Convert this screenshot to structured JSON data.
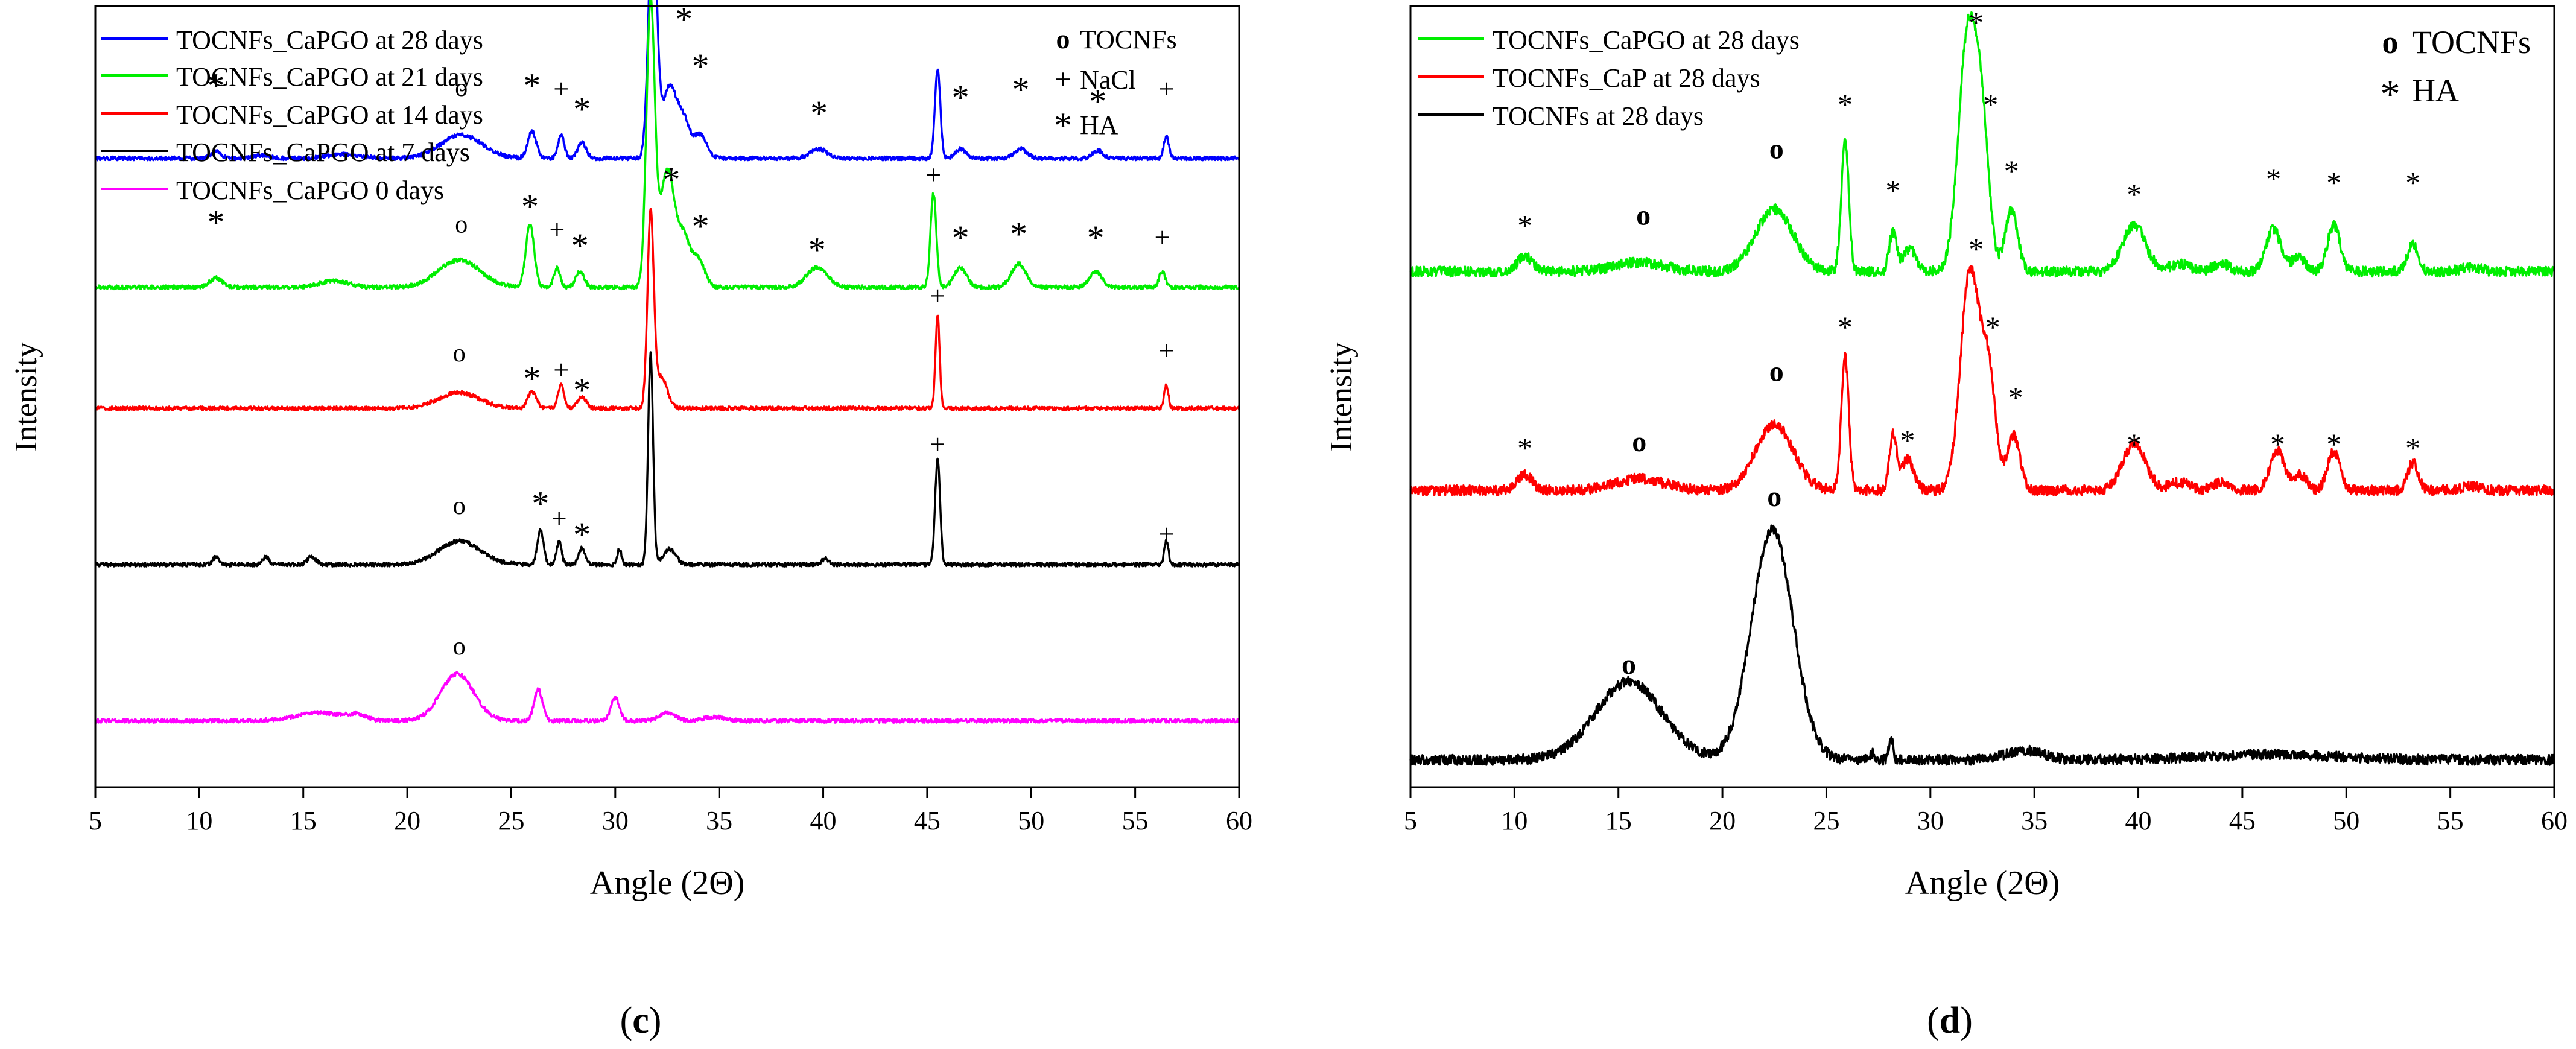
{
  "chart_data": [
    {
      "type": "line",
      "panel_label": "(c)",
      "xlabel": "Angle (2Θ)",
      "ylabel": "Intensity",
      "xlim": [
        5,
        60
      ],
      "xticks": [
        5,
        10,
        15,
        20,
        25,
        30,
        35,
        40,
        45,
        50,
        55,
        60
      ],
      "legend_position": "top-left",
      "legend": [
        {
          "name": "TOCNFs_CaPGO at 28 days",
          "color": "#0000ff"
        },
        {
          "name": "TOCNFs_CaPGO at 21 days",
          "color": "#00ee00"
        },
        {
          "name": "TOCNFs_CaPGO at 14 days",
          "color": "#ff0000"
        },
        {
          "name": "TOCNFs_CaPGO at 7 days",
          "color": "#000000"
        },
        {
          "name": "TOCNFs_CaPGO 0 days",
          "color": "#ff00ff"
        }
      ],
      "key": [
        {
          "symbol": "o",
          "label": "TOCNFs"
        },
        {
          "symbol": "+",
          "label": "NaCl"
        },
        {
          "symbol": "*",
          "label": "HA"
        }
      ],
      "series": [
        {
          "name": "TOCNFs_CaPGO at 28 days",
          "color": "#0000ff",
          "baseline": 0.805,
          "scale": 0.375,
          "peaks": [
            [
              10.8,
              0.009,
              0.25
            ],
            [
              13,
              0.004,
              0.4
            ],
            [
              17,
              0.005,
              0.8
            ],
            [
              22.6,
              0.03,
              1.0
            ],
            [
              26,
              0.035,
              0.2
            ],
            [
              27.4,
              0.03,
              0.15
            ],
            [
              28.4,
              0.02,
              0.2
            ],
            [
              31.8,
              0.31,
              0.2
            ],
            [
              32.6,
              0.09,
              0.35
            ],
            [
              33.3,
              0.045,
              0.3
            ],
            [
              34.1,
              0.03,
              0.3
            ],
            [
              39.8,
              0.012,
              0.4
            ],
            [
              45.5,
              0.115,
              0.13
            ],
            [
              46.6,
              0.012,
              0.25
            ],
            [
              49.5,
              0.012,
              0.3
            ],
            [
              53.2,
              0.01,
              0.25
            ],
            [
              56.5,
              0.028,
              0.12
            ]
          ]
        },
        {
          "name": "TOCNFs_CaPGO at 21 days",
          "color": "#00ee00",
          "baseline": 0.64,
          "scale": 0.31,
          "peaks": [
            [
              10.8,
              0.012,
              0.3
            ],
            [
              16.5,
              0.008,
              0.7
            ],
            [
              22.5,
              0.035,
              1.0
            ],
            [
              25.9,
              0.08,
              0.2
            ],
            [
              27.2,
              0.025,
              0.15
            ],
            [
              28.3,
              0.02,
              0.2
            ],
            [
              31.7,
              0.36,
              0.2
            ],
            [
              32.5,
              0.15,
              0.35
            ],
            [
              33.3,
              0.06,
              0.3
            ],
            [
              34,
              0.035,
              0.3
            ],
            [
              39.7,
              0.025,
              0.5
            ],
            [
              45.3,
              0.12,
              0.14
            ],
            [
              46.6,
              0.025,
              0.3
            ],
            [
              49.4,
              0.03,
              0.35
            ],
            [
              53.1,
              0.02,
              0.3
            ],
            [
              56.3,
              0.02,
              0.15
            ]
          ]
        },
        {
          "name": "TOCNFs_CaPGO at 14 days",
          "color": "#ff0000",
          "baseline": 0.485,
          "scale": 0.32,
          "peaks": [
            [
              22.5,
              0.02,
              1.0
            ],
            [
              26,
              0.022,
              0.2
            ],
            [
              27.4,
              0.03,
              0.15
            ],
            [
              28.4,
              0.015,
              0.2
            ],
            [
              31.7,
              0.245,
              0.15
            ],
            [
              32.2,
              0.04,
              0.3
            ],
            [
              45.5,
              0.12,
              0.1
            ],
            [
              56.5,
              0.03,
              0.1
            ]
          ]
        },
        {
          "name": "TOCNFs_CaPGO at 7 days",
          "color": "#000000",
          "baseline": 0.285,
          "scale": 0.33,
          "peaks": [
            [
              10.8,
              0.01,
              0.15
            ],
            [
              13.2,
              0.01,
              0.15
            ],
            [
              15.4,
              0.01,
              0.2
            ],
            [
              22.5,
              0.03,
              1.0
            ],
            [
              26.4,
              0.045,
              0.15
            ],
            [
              27.3,
              0.03,
              0.12
            ],
            [
              28.4,
              0.022,
              0.15
            ],
            [
              30.2,
              0.02,
              0.1
            ],
            [
              31.7,
              0.27,
              0.12
            ],
            [
              32.6,
              0.02,
              0.3
            ],
            [
              40.1,
              0.008,
              0.15
            ],
            [
              45.5,
              0.135,
              0.12
            ],
            [
              56.5,
              0.03,
              0.1
            ]
          ]
        },
        {
          "name": "TOCNFs_CaPGO 0 days",
          "color": "#ff00ff",
          "baseline": 0.085,
          "scale": 0.3,
          "peaks": [
            [
              15.8,
              0.01,
              1.2
            ],
            [
              17.6,
              0.006,
              0.4
            ],
            [
              22.4,
              0.06,
              0.8
            ],
            [
              26.3,
              0.04,
              0.2
            ],
            [
              30,
              0.03,
              0.2
            ],
            [
              32.5,
              0.01,
              0.4
            ],
            [
              34.8,
              0.005,
              0.5
            ]
          ]
        }
      ],
      "annotations": [
        {
          "text": "*",
          "x": 10.8,
          "y": 0.9
        },
        {
          "text": "o",
          "x": 22.6,
          "y": 0.885
        },
        {
          "text": "*",
          "x": 26,
          "y": 0.9
        },
        {
          "text": "+",
          "x": 27.4,
          "y": 0.89
        },
        {
          "text": "*",
          "x": 28.4,
          "y": 0.87
        },
        {
          "text": "+",
          "x": 31.8,
          "y": 1.175
        },
        {
          "text": "*",
          "x": 32.6,
          "y": 1.105
        },
        {
          "text": "*",
          "x": 33.3,
          "y": 0.985
        },
        {
          "text": "*",
          "x": 34.1,
          "y": 0.925
        },
        {
          "text": "*",
          "x": 39.8,
          "y": 0.865
        },
        {
          "text": "+",
          "x": 45.5,
          "y": 1.015
        },
        {
          "text": "*",
          "x": 46.6,
          "y": 0.885
        },
        {
          "text": "*",
          "x": 49.5,
          "y": 0.895
        },
        {
          "text": "*",
          "x": 53.2,
          "y": 0.88
        },
        {
          "text": "+",
          "x": 56.5,
          "y": 0.89
        },
        {
          "text": "*",
          "x": 10.8,
          "y": 0.725
        },
        {
          "text": "o",
          "x": 22.6,
          "y": 0.71
        },
        {
          "text": "*",
          "x": 25.9,
          "y": 0.745
        },
        {
          "text": "+",
          "x": 27.2,
          "y": 0.71
        },
        {
          "text": "*",
          "x": 28.3,
          "y": 0.695
        },
        {
          "text": "*",
          "x": 32.7,
          "y": 0.78
        },
        {
          "text": "*",
          "x": 34.1,
          "y": 0.72
        },
        {
          "text": "*",
          "x": 39.7,
          "y": 0.69
        },
        {
          "text": "+",
          "x": 45.3,
          "y": 0.78
        },
        {
          "text": "*",
          "x": 46.6,
          "y": 0.705
        },
        {
          "text": "*",
          "x": 49.4,
          "y": 0.71
        },
        {
          "text": "*",
          "x": 53.1,
          "y": 0.705
        },
        {
          "text": "+",
          "x": 56.3,
          "y": 0.7
        },
        {
          "text": "o",
          "x": 22.5,
          "y": 0.545
        },
        {
          "text": "*",
          "x": 26,
          "y": 0.525
        },
        {
          "text": "+",
          "x": 27.4,
          "y": 0.53
        },
        {
          "text": "*",
          "x": 28.4,
          "y": 0.51
        },
        {
          "text": "+",
          "x": 45.5,
          "y": 0.625
        },
        {
          "text": "+",
          "x": 56.5,
          "y": 0.555
        },
        {
          "text": "o",
          "x": 22.5,
          "y": 0.35
        },
        {
          "text": "*",
          "x": 26.4,
          "y": 0.365
        },
        {
          "text": "+",
          "x": 27.3,
          "y": 0.34
        },
        {
          "text": "*",
          "x": 28.4,
          "y": 0.325
        },
        {
          "text": "+",
          "x": 45.5,
          "y": 0.435
        },
        {
          "text": "+",
          "x": 56.5,
          "y": 0.32
        },
        {
          "text": "o",
          "x": 22.5,
          "y": 0.17
        }
      ]
    },
    {
      "type": "line",
      "panel_label": "(d)",
      "xlabel": "Angle (2Θ)",
      "ylabel": "Intensity",
      "xlim": [
        5,
        60
      ],
      "xticks": [
        5,
        10,
        15,
        20,
        25,
        30,
        35,
        40,
        45,
        50,
        55,
        60
      ],
      "legend_position": "top-left",
      "legend": [
        {
          "name": "TOCNFs_CaPGO at 28 days",
          "color": "#00ee00"
        },
        {
          "name": "TOCNFs_CaP at 28 days",
          "color": "#ff0000"
        },
        {
          "name": "TOCNFs at 28 days",
          "color": "#000000"
        }
      ],
      "key": [
        {
          "symbol": "o",
          "label": "TOCNFs"
        },
        {
          "symbol": "*",
          "label": "HA"
        }
      ],
      "series": [
        {
          "name": "TOCNFs_CaPGO at 28 days",
          "color": "#00ee00",
          "baseline": 0.66,
          "scale": 0.345,
          "peaks": [
            [
              10.5,
              0.02,
              0.35
            ],
            [
              16,
              0.012,
              1.2
            ],
            [
              22.5,
              0.08,
              0.9
            ],
            [
              25.9,
              0.17,
              0.18
            ],
            [
              28.2,
              0.05,
              0.18
            ],
            [
              29,
              0.03,
              0.3
            ],
            [
              31.8,
              0.3,
              0.45
            ],
            [
              32.5,
              0.15,
              0.35
            ],
            [
              33.9,
              0.08,
              0.3
            ],
            [
              39.8,
              0.06,
              0.55
            ],
            [
              42,
              0.01,
              0.5
            ],
            [
              44,
              0.01,
              0.4
            ],
            [
              46.5,
              0.055,
              0.35
            ],
            [
              47.7,
              0.02,
              0.3
            ],
            [
              49.4,
              0.06,
              0.3
            ],
            [
              53.2,
              0.035,
              0.25
            ],
            [
              56,
              0.005,
              0.5
            ]
          ]
        },
        {
          "name": "TOCNFs_CaP at 28 days",
          "color": "#ff0000",
          "baseline": 0.38,
          "scale": 0.335,
          "peaks": [
            [
              10.5,
              0.02,
              0.35
            ],
            [
              16,
              0.015,
              1.2
            ],
            [
              22.5,
              0.085,
              0.9
            ],
            [
              25.9,
              0.17,
              0.18
            ],
            [
              28.2,
              0.07,
              0.18
            ],
            [
              28.9,
              0.04,
              0.3
            ],
            [
              31.9,
              0.28,
              0.45
            ],
            [
              32.8,
              0.14,
              0.35
            ],
            [
              34,
              0.07,
              0.3
            ],
            [
              39.8,
              0.06,
              0.55
            ],
            [
              42,
              0.01,
              0.5
            ],
            [
              44,
              0.01,
              0.4
            ],
            [
              46.7,
              0.05,
              0.35
            ],
            [
              47.8,
              0.02,
              0.3
            ],
            [
              49.4,
              0.05,
              0.3
            ],
            [
              53.2,
              0.035,
              0.25
            ],
            [
              56,
              0.005,
              0.5
            ]
          ]
        },
        {
          "name": "TOCNFs at 28 days",
          "color": "#000000",
          "baseline": 0.035,
          "scale": 0.43,
          "peaks": [
            [
              15.5,
              0.1,
              1.6
            ],
            [
              22.4,
              0.295,
              1.0
            ],
            [
              27.2,
              0.008,
              0.12
            ],
            [
              28.1,
              0.03,
              0.1
            ],
            [
              34.5,
              0.012,
              0.9
            ],
            [
              46.5,
              0.007,
              3.0
            ]
          ]
        }
      ],
      "annotations": [
        {
          "text": "*",
          "x": 10.5,
          "y": 0.72
        },
        {
          "text": "o",
          "x": 16.2,
          "y": 0.72
        },
        {
          "text": "o",
          "x": 22.6,
          "y": 0.805
        },
        {
          "text": "*",
          "x": 25.9,
          "y": 0.875
        },
        {
          "text": "*",
          "x": 28.2,
          "y": 0.765
        },
        {
          "text": "*",
          "x": 32.2,
          "y": 0.98
        },
        {
          "text": "*",
          "x": 32.9,
          "y": 0.875
        },
        {
          "text": "*",
          "x": 33.9,
          "y": 0.79
        },
        {
          "text": "*",
          "x": 39.8,
          "y": 0.76
        },
        {
          "text": "*",
          "x": 46.5,
          "y": 0.78
        },
        {
          "text": "*",
          "x": 49.4,
          "y": 0.775
        },
        {
          "text": "*",
          "x": 53.2,
          "y": 0.775
        },
        {
          "text": "*",
          "x": 10.5,
          "y": 0.435
        },
        {
          "text": "o",
          "x": 16,
          "y": 0.43
        },
        {
          "text": "o",
          "x": 22.6,
          "y": 0.52
        },
        {
          "text": "*",
          "x": 25.9,
          "y": 0.59
        },
        {
          "text": "*",
          "x": 28.9,
          "y": 0.445
        },
        {
          "text": "*",
          "x": 32.2,
          "y": 0.69
        },
        {
          "text": "*",
          "x": 33,
          "y": 0.59
        },
        {
          "text": "*",
          "x": 34.1,
          "y": 0.5
        },
        {
          "text": "*",
          "x": 39.8,
          "y": 0.44
        },
        {
          "text": "*",
          "x": 46.7,
          "y": 0.44
        },
        {
          "text": "*",
          "x": 49.4,
          "y": 0.44
        },
        {
          "text": "*",
          "x": 53.2,
          "y": 0.435
        },
        {
          "text": "o",
          "x": 22.5,
          "y": 0.36
        },
        {
          "text": "o",
          "x": 15.5,
          "y": 0.145
        }
      ]
    }
  ]
}
